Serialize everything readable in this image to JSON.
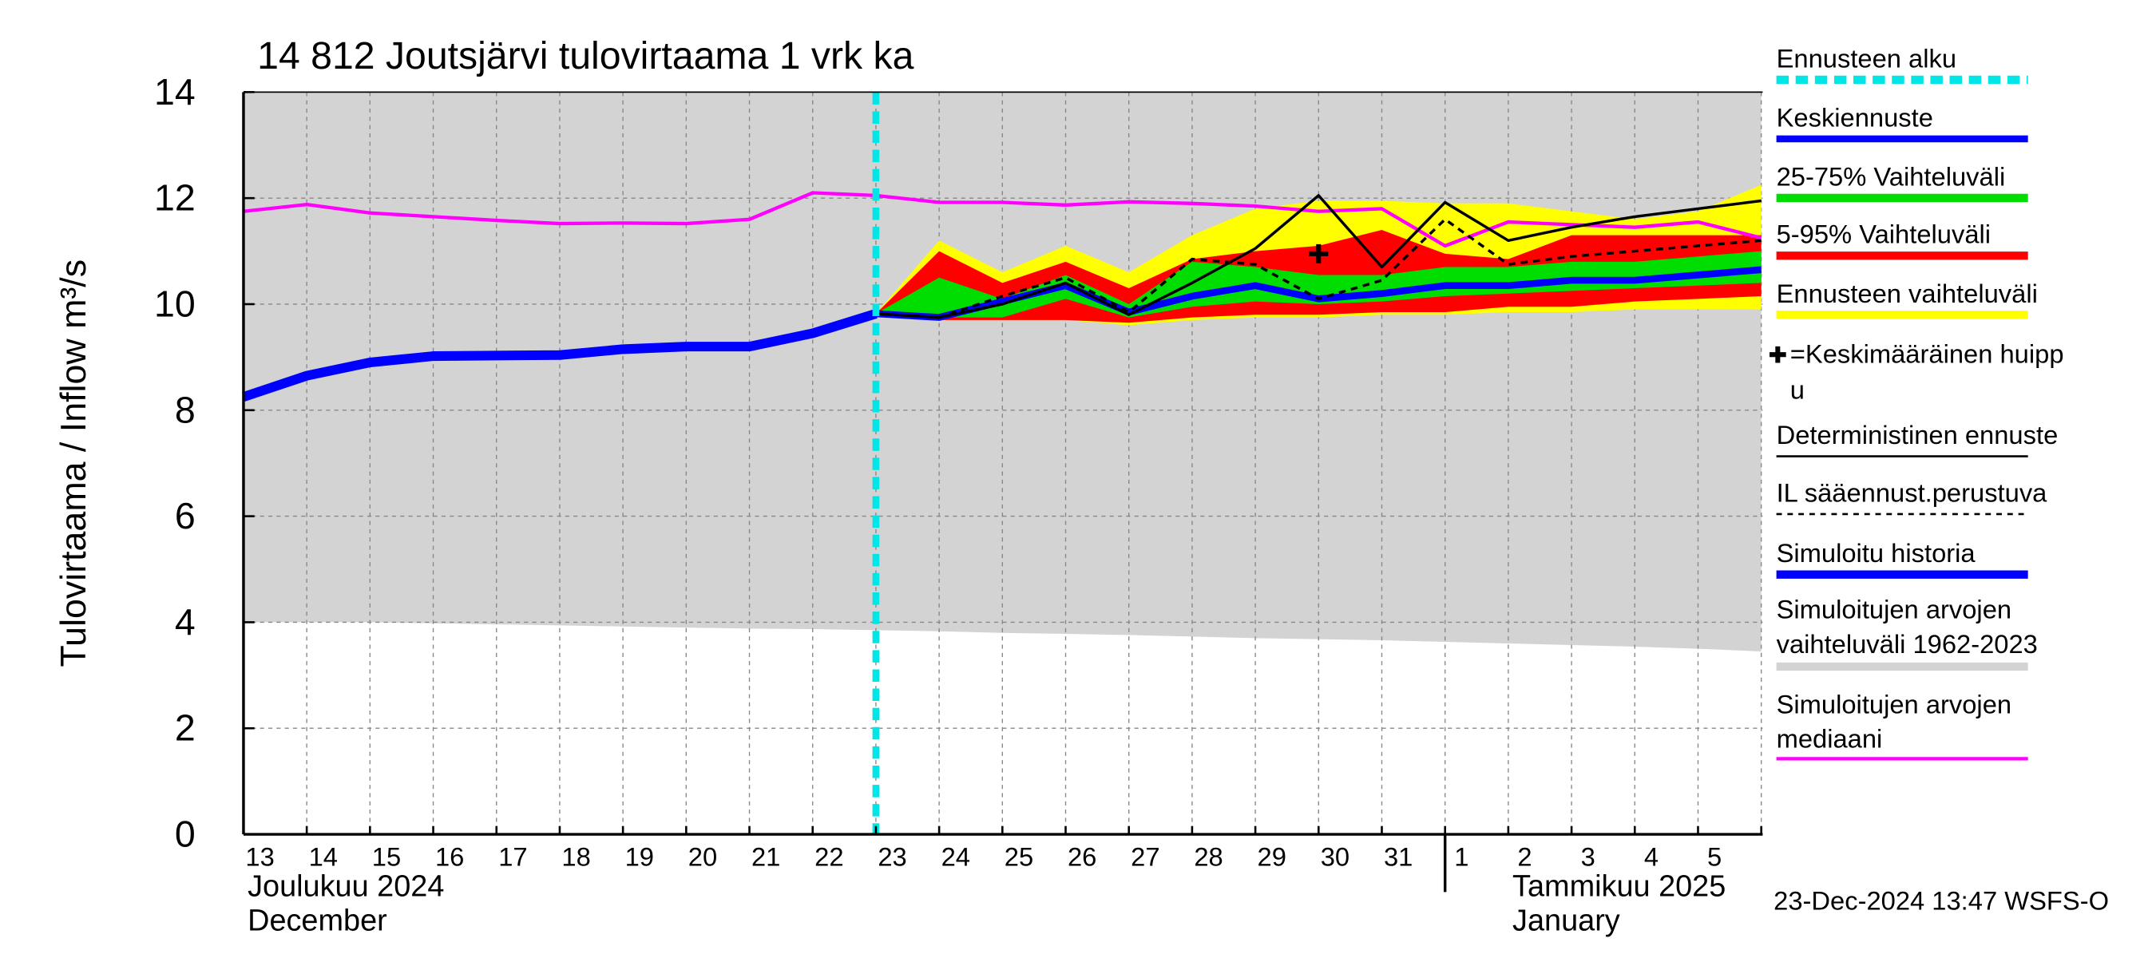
{
  "chart_data": {
    "type": "line",
    "title": "14 812 Joutsjärvi tulovirtaama 1 vrk ka",
    "y_label": "Tulovirtaama / Inflow   m³/s",
    "timestamp": "23-Dec-2024 13:47 WSFS-O",
    "categories": [
      "13",
      "14",
      "15",
      "16",
      "17",
      "18",
      "19",
      "20",
      "21",
      "22",
      "23",
      "24",
      "25",
      "26",
      "27",
      "28",
      "29",
      "30",
      "31",
      "1",
      "2",
      "3",
      "4",
      "5",
      null
    ],
    "months": [
      [
        "Joulukuu  2024",
        "December"
      ],
      [
        "Tammikuu  2025",
        "January"
      ]
    ],
    "ylim": [
      0,
      14
    ],
    "yticks": [
      0,
      2,
      4,
      6,
      8,
      10,
      12,
      14
    ],
    "grid": true,
    "series": [
      {
        "name": [
          "Ennusteen alku"
        ],
        "kind": "vline",
        "color": "#00e5e5",
        "x": "23"
      },
      {
        "name": [
          "Keskiennuste"
        ],
        "kind": "line",
        "color": "#0000ff",
        "width": 5,
        "values": [
          null,
          null,
          null,
          null,
          null,
          null,
          null,
          null,
          null,
          null,
          9.82,
          9.75,
          10.05,
          10.35,
          9.85,
          10.15,
          10.35,
          10.1,
          10.2,
          10.35,
          10.35,
          10.45,
          10.45,
          10.55,
          10.65
        ]
      },
      {
        "name": [
          "25-75% Vaihteluväli"
        ],
        "kind": "band",
        "color": "#00dd00",
        "upper": [
          null,
          null,
          null,
          null,
          null,
          null,
          null,
          null,
          null,
          null,
          9.82,
          10.5,
          10.1,
          10.55,
          10.0,
          10.8,
          10.7,
          10.55,
          10.55,
          10.7,
          10.7,
          10.8,
          10.8,
          10.9,
          11.0
        ],
        "lower": [
          null,
          null,
          null,
          null,
          null,
          null,
          null,
          null,
          null,
          null,
          9.82,
          9.75,
          9.75,
          10.1,
          9.75,
          9.95,
          10.05,
          10.0,
          10.05,
          10.15,
          10.2,
          10.25,
          10.3,
          10.35,
          10.4
        ]
      },
      {
        "name": [
          "5-95% Vaihteluväli"
        ],
        "kind": "band",
        "color": "#ff0000",
        "upper": [
          null,
          null,
          null,
          null,
          null,
          null,
          null,
          null,
          null,
          null,
          9.82,
          11.0,
          10.4,
          10.8,
          10.3,
          10.85,
          11.0,
          11.1,
          11.4,
          10.95,
          10.85,
          11.3,
          11.3,
          11.3,
          11.3
        ],
        "lower": [
          null,
          null,
          null,
          null,
          null,
          null,
          null,
          null,
          null,
          null,
          9.82,
          9.7,
          9.7,
          9.7,
          9.65,
          9.75,
          9.8,
          9.8,
          9.85,
          9.85,
          9.95,
          9.95,
          10.05,
          10.1,
          10.15
        ]
      },
      {
        "name": [
          "Ennusteen vaihteluväli"
        ],
        "kind": "band",
        "color": "#ffff00",
        "upper": [
          null,
          null,
          null,
          null,
          null,
          null,
          null,
          null,
          null,
          null,
          9.82,
          11.2,
          10.6,
          11.1,
          10.6,
          11.3,
          11.8,
          11.95,
          11.95,
          11.9,
          11.9,
          11.75,
          11.6,
          11.75,
          12.25
        ],
        "lower": [
          null,
          null,
          null,
          null,
          null,
          null,
          null,
          null,
          null,
          null,
          9.82,
          9.7,
          9.7,
          9.7,
          9.6,
          9.7,
          9.75,
          9.75,
          9.8,
          9.8,
          9.85,
          9.85,
          9.9,
          9.9,
          9.9
        ]
      },
      {
        "name": [
          "=Keskimääräinen huipp",
          "u"
        ],
        "kind": "peak",
        "color": "#000000",
        "x": "30",
        "value": 10.95
      },
      {
        "name": [
          "Deterministinen ennuste"
        ],
        "kind": "line",
        "color": "#000000",
        "width": 2,
        "values": [
          null,
          null,
          null,
          null,
          null,
          null,
          null,
          null,
          null,
          null,
          9.82,
          9.75,
          10.0,
          10.4,
          9.8,
          10.4,
          11.05,
          12.05,
          10.7,
          11.92,
          11.2,
          11.45,
          11.65,
          11.8,
          11.95
        ]
      },
      {
        "name": [
          "IL sääennust.perustuva"
        ],
        "kind": "line",
        "color": "#000000",
        "width": 2,
        "dash": true,
        "values": [
          null,
          null,
          null,
          null,
          null,
          null,
          null,
          null,
          null,
          null,
          9.82,
          9.75,
          10.15,
          10.5,
          9.85,
          10.85,
          10.75,
          10.1,
          10.45,
          11.6,
          10.75,
          10.9,
          11.0,
          11.1,
          11.2
        ]
      },
      {
        "name": [
          "Simuloitu historia"
        ],
        "kind": "line",
        "color": "#0000ff",
        "width": 7,
        "values": [
          8.25,
          8.65,
          8.9,
          9.02,
          9.03,
          9.04,
          9.15,
          9.2,
          9.2,
          9.45,
          9.82,
          null,
          null,
          null,
          null,
          null,
          null,
          null,
          null,
          null,
          null,
          null,
          null,
          null,
          null
        ]
      },
      {
        "name": [
          "Simuloitujen arvojen",
          "vaihteluväli 1962-2023"
        ],
        "kind": "band",
        "color": "#d3d3d3",
        "upper": [
          14,
          14,
          14,
          14,
          14,
          14,
          14,
          14,
          14,
          14,
          14,
          14,
          14,
          14,
          14,
          14,
          14,
          14,
          14,
          14,
          14,
          14,
          14,
          14,
          14
        ],
        "lower": [
          4.0,
          4.0,
          4.0,
          3.98,
          3.96,
          3.94,
          3.92,
          3.9,
          3.88,
          3.87,
          3.85,
          3.83,
          3.8,
          3.78,
          3.76,
          3.73,
          3.7,
          3.68,
          3.66,
          3.63,
          3.6,
          3.57,
          3.54,
          3.5,
          3.45
        ]
      },
      {
        "name": [
          "Simuloitujen arvojen",
          "mediaani"
        ],
        "kind": "line",
        "color": "#ff00ff",
        "width": 2.5,
        "values": [
          11.75,
          11.88,
          11.72,
          11.65,
          11.58,
          11.52,
          11.53,
          11.52,
          11.6,
          12.1,
          12.05,
          11.92,
          11.92,
          11.87,
          11.93,
          11.9,
          11.85,
          11.75,
          11.8,
          11.1,
          11.55,
          11.5,
          11.45,
          11.55,
          11.25
        ]
      }
    ]
  }
}
